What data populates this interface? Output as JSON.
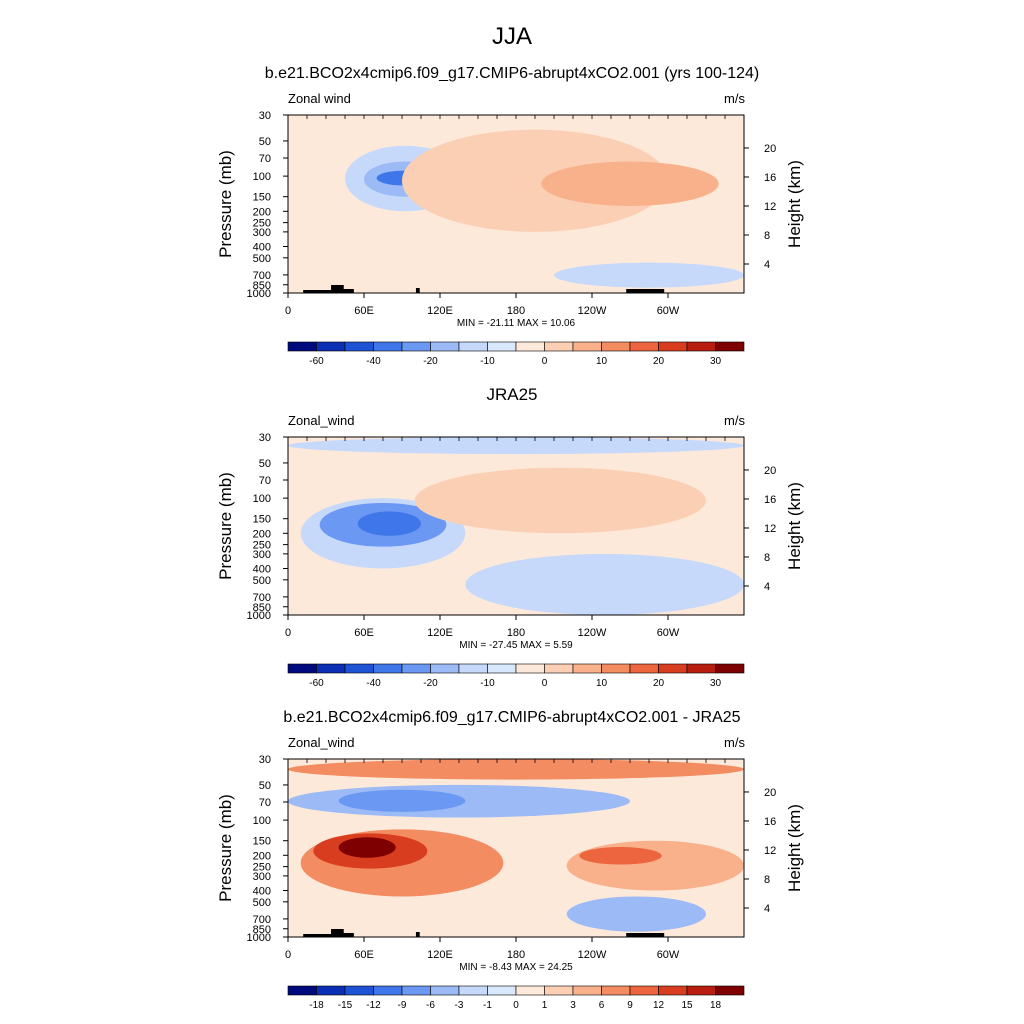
{
  "figure": {
    "season_title": "JJA",
    "colors": {
      "neg": [
        "#000a7f",
        "#0a2fb4",
        "#1e53d6",
        "#3f77ea",
        "#6b98f2",
        "#9bbaf6",
        "#c6d9fb",
        "#d8e8fd"
      ],
      "pos": [
        "#fde9da",
        "#fbcfb3",
        "#f8b18b",
        "#f48c62",
        "#ec653e",
        "#d93d20",
        "#b81d10",
        "#7e0000"
      ]
    }
  },
  "chart_data": [
    {
      "type": "heatmap",
      "title": "b.e21.BCO2x4cmip6.f09_g17.CMIP6-abrupt4xCO2.001 (yrs 100-124)",
      "variable_label": "Zonal wind",
      "units": "m/s",
      "ylabel": "Pressure (mb)",
      "y2label": "Height (km)",
      "x_ticks": [
        "0",
        "60E",
        "120E",
        "180",
        "120W",
        "60W"
      ],
      "y_ticks": [
        "30",
        "50",
        "70",
        "100",
        "150",
        "200",
        "250",
        "300",
        "400",
        "500",
        "700",
        "850",
        "1000"
      ],
      "y2_ticks": [
        "20",
        "16",
        "12",
        "8",
        "4"
      ],
      "xlim": [
        0,
        360
      ],
      "ylim": [
        1000,
        30
      ],
      "y_scale": "log",
      "stats": "MIN = -21.11  MAX =  10.06",
      "colorbar_labels": [
        "-60",
        "-40",
        "-20",
        "-10",
        "0",
        "10",
        "20",
        "30"
      ],
      "has_topography": true,
      "features": [
        {
          "kind": "background",
          "value": 2
        },
        {
          "kind": "blob",
          "value": -5,
          "lon": [
            45,
            140
          ],
          "p": [
            55,
            200
          ],
          "note": "negative core"
        },
        {
          "kind": "blob",
          "value": -12,
          "lon": [
            60,
            125
          ],
          "p": [
            75,
            150
          ]
        },
        {
          "kind": "blob",
          "value": -25,
          "lon": [
            70,
            110
          ],
          "p": [
            90,
            120
          ]
        },
        {
          "kind": "blob",
          "value": 6,
          "lon": [
            90,
            300
          ],
          "p": [
            40,
            300
          ]
        },
        {
          "kind": "blob",
          "value": 11,
          "lon": [
            200,
            340
          ],
          "p": [
            75,
            180
          ]
        },
        {
          "kind": "blob",
          "value": -5,
          "lon": [
            210,
            360
          ],
          "p": [
            550,
            900
          ]
        }
      ]
    },
    {
      "type": "heatmap",
      "title": "JRA25",
      "variable_label": "Zonal_wind",
      "units": "m/s",
      "ylabel": "Pressure (mb)",
      "y2label": "Height (km)",
      "x_ticks": [
        "0",
        "60E",
        "120E",
        "180",
        "120W",
        "60W"
      ],
      "y_ticks": [
        "30",
        "50",
        "70",
        "100",
        "150",
        "200",
        "250",
        "300",
        "400",
        "500",
        "700",
        "850",
        "1000"
      ],
      "y2_ticks": [
        "20",
        "16",
        "12",
        "8",
        "4"
      ],
      "xlim": [
        0,
        360
      ],
      "ylim": [
        1000,
        30
      ],
      "y_scale": "log",
      "stats": "MIN = -27.45  MAX =   5.59",
      "colorbar_labels": [
        "-60",
        "-40",
        "-20",
        "-10",
        "0",
        "10",
        "20",
        "30"
      ],
      "has_topography": false,
      "features": [
        {
          "kind": "background",
          "value": 2
        },
        {
          "kind": "blob",
          "value": -5,
          "lon": [
            0,
            360
          ],
          "p": [
            30,
            42
          ]
        },
        {
          "kind": "blob",
          "value": -5,
          "lon": [
            10,
            140
          ],
          "p": [
            100,
            400
          ]
        },
        {
          "kind": "blob",
          "value": -15,
          "lon": [
            25,
            125
          ],
          "p": [
            110,
            260
          ]
        },
        {
          "kind": "blob",
          "value": -28,
          "lon": [
            55,
            105
          ],
          "p": [
            130,
            210
          ]
        },
        {
          "kind": "blob",
          "value": 6,
          "lon": [
            100,
            330
          ],
          "p": [
            55,
            200
          ]
        },
        {
          "kind": "blob",
          "value": -5,
          "lon": [
            140,
            360
          ],
          "p": [
            300,
            1000
          ]
        }
      ]
    },
    {
      "type": "heatmap",
      "title": "b.e21.BCO2x4cmip6.f09_g17.CMIP6-abrupt4xCO2.001 - JRA25",
      "variable_label": "Zonal_wind",
      "units": "m/s",
      "ylabel": "Pressure (mb)",
      "y2label": "Height (km)",
      "x_ticks": [
        "0",
        "60E",
        "120E",
        "180",
        "120W",
        "60W"
      ],
      "y_ticks": [
        "30",
        "50",
        "70",
        "100",
        "150",
        "200",
        "250",
        "300",
        "400",
        "500",
        "700",
        "850",
        "1000"
      ],
      "y2_ticks": [
        "20",
        "16",
        "12",
        "8",
        "4"
      ],
      "xlim": [
        0,
        360
      ],
      "ylim": [
        1000,
        30
      ],
      "y_scale": "log",
      "stats": "MIN = -8.43  MAX =  24.25",
      "colorbar_labels": [
        "-18",
        "-15",
        "-12",
        "-9",
        "-6",
        "-3",
        "-1",
        "0",
        "1",
        "3",
        "6",
        "9",
        "12",
        "15",
        "18"
      ],
      "has_topography": true,
      "features": [
        {
          "kind": "background",
          "value": 0.5
        },
        {
          "kind": "blob",
          "value": 9,
          "lon": [
            0,
            360
          ],
          "p": [
            30,
            45
          ]
        },
        {
          "kind": "blob",
          "value": -3,
          "lon": [
            0,
            270
          ],
          "p": [
            50,
            95
          ]
        },
        {
          "kind": "blob",
          "value": -7,
          "lon": [
            40,
            140
          ],
          "p": [
            55,
            85
          ]
        },
        {
          "kind": "blob",
          "value": 7,
          "lon": [
            10,
            170
          ],
          "p": [
            120,
            450
          ]
        },
        {
          "kind": "blob",
          "value": 13,
          "lon": [
            20,
            110
          ],
          "p": [
            130,
            260
          ]
        },
        {
          "kind": "blob",
          "value": 20,
          "lon": [
            40,
            85
          ],
          "p": [
            140,
            210
          ]
        },
        {
          "kind": "blob",
          "value": 6,
          "lon": [
            220,
            360
          ],
          "p": [
            150,
            400
          ]
        },
        {
          "kind": "blob",
          "value": 12,
          "lon": [
            230,
            295
          ],
          "p": [
            170,
            240
          ]
        },
        {
          "kind": "blob",
          "value": -3,
          "lon": [
            220,
            330
          ],
          "p": [
            450,
            900
          ]
        }
      ]
    }
  ]
}
